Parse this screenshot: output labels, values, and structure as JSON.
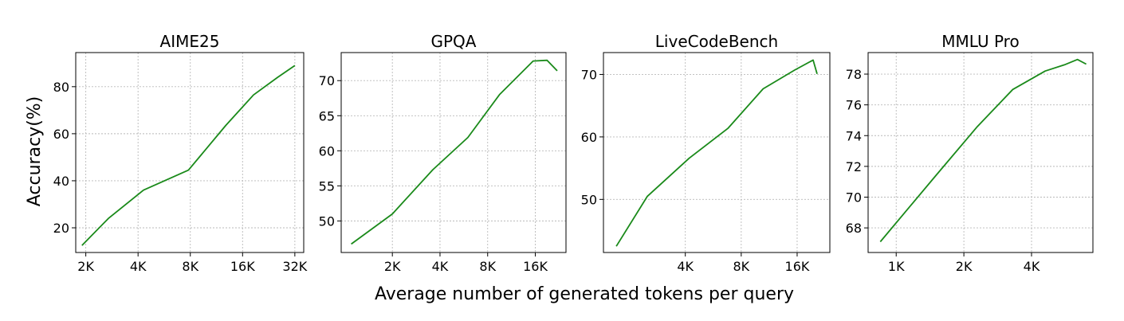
{
  "figure": {
    "ylabel": "Accuracy(%)",
    "xlabel": "Average number of generated tokens per query",
    "line_color": "#1a8a1a"
  },
  "chart_data": [
    {
      "type": "line",
      "title": "AIME25",
      "xscale": "log2",
      "xlim": [
        1.75,
        36.0
      ],
      "ylim": [
        9.5,
        94.5
      ],
      "xticks": [
        2,
        4,
        8,
        16,
        32
      ],
      "xtick_labels": [
        "2K",
        "4K",
        "8K",
        "16K",
        "32K"
      ],
      "yticks": [
        20,
        40,
        60,
        80
      ],
      "yticks_labels": [
        "20",
        "40",
        "60",
        "80"
      ],
      "series": [
        {
          "name": "accuracy",
          "x": [
            1.9,
            2.7,
            4.3,
            7.8,
            12.8,
            18.5,
            25.5,
            32.0
          ],
          "y": [
            12.5,
            24.0,
            36.0,
            44.5,
            63.5,
            76.5,
            84.0,
            89.0
          ]
        }
      ]
    },
    {
      "type": "line",
      "title": "GPQA",
      "xscale": "log2",
      "xlim": [
        0.95,
        25.0
      ],
      "ylim": [
        45.5,
        74.0
      ],
      "xticks": [
        2,
        4,
        8,
        16
      ],
      "xtick_labels": [
        "2K",
        "4K",
        "8K",
        "16K"
      ],
      "yticks": [
        50,
        55,
        60,
        65,
        70
      ],
      "yticks_labels": [
        "50",
        "55",
        "60",
        "65",
        "70"
      ],
      "series": [
        {
          "name": "accuracy",
          "x": [
            1.1,
            2.0,
            3.6,
            6.0,
            9.5,
            15.5,
            19.0,
            22.0
          ],
          "y": [
            46.7,
            51.0,
            57.3,
            61.9,
            68.0,
            72.8,
            72.9,
            71.4
          ]
        }
      ]
    },
    {
      "type": "line",
      "title": "LiveCodeBench",
      "xscale": "log2",
      "xlim": [
        1.45,
        24.0
      ],
      "ylim": [
        41.5,
        73.5
      ],
      "xticks": [
        4,
        8,
        16
      ],
      "xtick_labels": [
        "4K",
        "8K",
        "16K"
      ],
      "yticks": [
        50,
        60,
        70
      ],
      "yticks_labels": [
        "50",
        "60",
        "70"
      ],
      "series": [
        {
          "name": "accuracy",
          "x": [
            1.7,
            2.5,
            4.2,
            6.8,
            10.5,
            15.5,
            19.5,
            20.5
          ],
          "y": [
            42.5,
            50.5,
            56.6,
            61.4,
            67.7,
            70.7,
            72.3,
            70.1
          ]
        }
      ]
    },
    {
      "type": "line",
      "title": "MMLU Pro",
      "xscale": "log2",
      "xlim": [
        0.75,
        7.5
      ],
      "ylim": [
        66.4,
        79.4
      ],
      "xticks": [
        1,
        2,
        4
      ],
      "xtick_labels": [
        "1K",
        "2K",
        "4K"
      ],
      "yticks": [
        68,
        70,
        72,
        74,
        76,
        78
      ],
      "yticks_labels": [
        "68",
        "70",
        "72",
        "74",
        "76",
        "78"
      ],
      "series": [
        {
          "name": "accuracy",
          "x": [
            0.85,
            1.5,
            2.3,
            3.3,
            4.6,
            5.6,
            6.4,
            7.0
          ],
          "y": [
            67.1,
            71.4,
            74.6,
            77.0,
            78.2,
            78.6,
            78.95,
            78.65
          ]
        }
      ]
    }
  ]
}
